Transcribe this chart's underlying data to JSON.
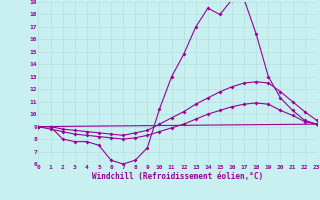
{
  "xlabel": "Windchill (Refroidissement éolien,°C)",
  "bg_color": "#c8f0f0",
  "line_color": "#990099",
  "grid_color": "#b8e0e0",
  "xmin": 0,
  "xmax": 23,
  "ymin": 6,
  "ymax": 19,
  "line1_x": [
    0,
    1,
    2,
    3,
    4,
    5,
    6,
    7,
    8,
    9,
    10,
    11,
    12,
    13,
    14,
    15,
    16,
    17,
    18,
    19,
    20,
    21,
    22,
    23
  ],
  "line1_y": [
    9.0,
    9.0,
    8.0,
    7.8,
    7.8,
    7.5,
    6.3,
    6.0,
    6.3,
    7.3,
    10.4,
    13.0,
    14.8,
    17.0,
    18.5,
    18.0,
    19.2,
    19.2,
    16.4,
    13.0,
    11.3,
    10.3,
    9.5,
    9.2
  ],
  "line2_x": [
    0,
    1,
    2,
    3,
    4,
    5,
    6,
    7,
    8,
    9,
    10,
    11,
    12,
    13,
    14,
    15,
    16,
    17,
    18,
    19,
    20,
    21,
    22,
    23
  ],
  "line2_y": [
    9.0,
    9.0,
    8.8,
    8.7,
    8.6,
    8.5,
    8.4,
    8.3,
    8.5,
    8.7,
    9.2,
    9.7,
    10.2,
    10.8,
    11.3,
    11.8,
    12.2,
    12.5,
    12.6,
    12.5,
    11.8,
    11.0,
    10.2,
    9.5
  ],
  "line3_x": [
    0,
    23
  ],
  "line3_y": [
    9.0,
    9.2
  ],
  "line4_x": [
    0,
    1,
    2,
    3,
    4,
    5,
    6,
    7,
    8,
    9,
    10,
    11,
    12,
    13,
    14,
    15,
    16,
    17,
    18,
    19,
    20,
    21,
    22,
    23
  ],
  "line4_y": [
    9.0,
    8.8,
    8.6,
    8.4,
    8.3,
    8.2,
    8.1,
    8.0,
    8.1,
    8.3,
    8.6,
    8.9,
    9.2,
    9.6,
    10.0,
    10.3,
    10.6,
    10.8,
    10.9,
    10.8,
    10.3,
    9.9,
    9.4,
    9.2
  ]
}
